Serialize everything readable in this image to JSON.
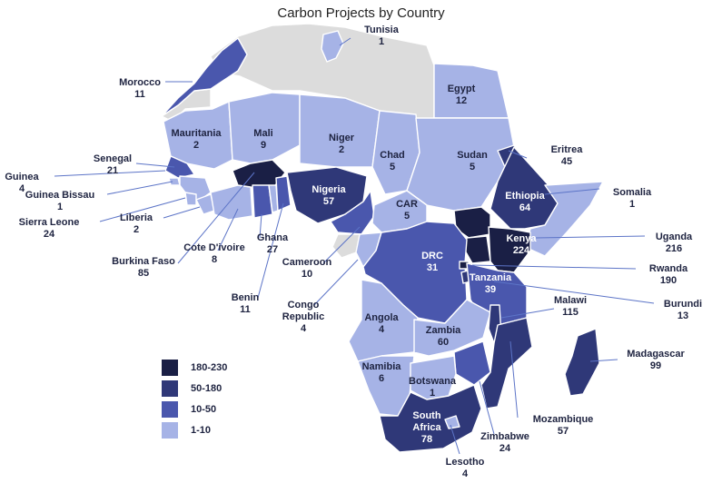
{
  "title": "Carbon Projects by Country",
  "colors": {
    "none": "#dcdcdc",
    "tier1": "#a6b3e6",
    "tier2": "#4a57ad",
    "tier3": "#2f3878",
    "tier4": "#1a1f45"
  },
  "legend": [
    {
      "label": "180-230",
      "tier": "tier4"
    },
    {
      "label": "50-180",
      "tier": "tier3"
    },
    {
      "label": "10-50",
      "tier": "tier2"
    },
    {
      "label": "1-10",
      "tier": "tier1"
    }
  ],
  "countries": [
    {
      "name": "Tunisia",
      "value": "1"
    },
    {
      "name": "Morocco",
      "value": "11"
    },
    {
      "name": "Egypt",
      "value": "12"
    },
    {
      "name": "Mauritania",
      "value": "2"
    },
    {
      "name": "Mali",
      "value": "9"
    },
    {
      "name": "Niger",
      "value": "2"
    },
    {
      "name": "Chad",
      "value": "5"
    },
    {
      "name": "Sudan",
      "value": "5"
    },
    {
      "name": "Eritrea",
      "value": "45"
    },
    {
      "name": "Senegal",
      "value": "21"
    },
    {
      "name": "Guinea",
      "value": "4"
    },
    {
      "name": "Guinea Bissau",
      "value": "1"
    },
    {
      "name": "Sierra Leone",
      "value": "24"
    },
    {
      "name": "Liberia",
      "value": "2"
    },
    {
      "name": "Nigeria",
      "value": "57"
    },
    {
      "name": "Ethiopia",
      "value": "64"
    },
    {
      "name": "Somalia",
      "value": "1"
    },
    {
      "name": "CAR",
      "value": "5"
    },
    {
      "name": "Kenya",
      "value": "224"
    },
    {
      "name": "Uganda",
      "value": "216"
    },
    {
      "name": "Ghana",
      "value": "27"
    },
    {
      "name": "Cote D'ivoire",
      "value": "8"
    },
    {
      "name": "Burkina Faso",
      "value": "85"
    },
    {
      "name": "Cameroon",
      "value": "10"
    },
    {
      "name": "DRC",
      "value": "31"
    },
    {
      "name": "Rwanda",
      "value": "190"
    },
    {
      "name": "Benin",
      "value": "11"
    },
    {
      "name": "Tanzania",
      "value": "39"
    },
    {
      "name": "Burundi",
      "value": "13"
    },
    {
      "name": "Congo Republic",
      "value": "4"
    },
    {
      "name": "Malawi",
      "value": "115"
    },
    {
      "name": "Angola",
      "value": "4"
    },
    {
      "name": "Zambia",
      "value": "60"
    },
    {
      "name": "Madagascar",
      "value": "99"
    },
    {
      "name": "Namibia",
      "value": "6"
    },
    {
      "name": "Botswana",
      "value": "1"
    },
    {
      "name": "Mozambique",
      "value": "57"
    },
    {
      "name": "Zimbabwe",
      "value": "24"
    },
    {
      "name": "South Africa",
      "value": "78"
    },
    {
      "name": "Lesotho",
      "value": "4"
    }
  ]
}
